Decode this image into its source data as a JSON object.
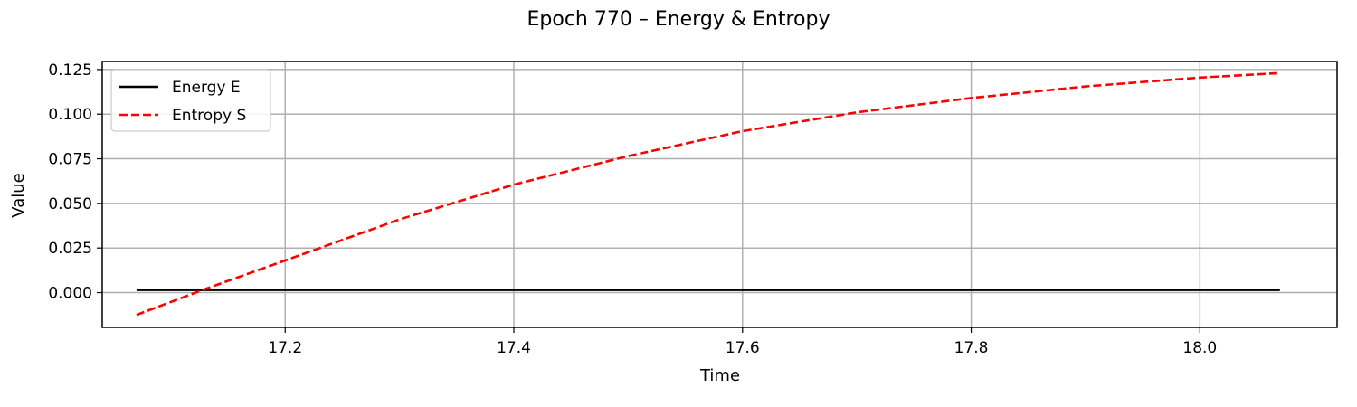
{
  "chart_data": {
    "type": "line",
    "title": "Epoch 770 – Energy & Entropy",
    "xlabel": "Time",
    "ylabel": "Value",
    "xlim": [
      17.04,
      18.12
    ],
    "ylim": [
      -0.0195,
      0.1295
    ],
    "xticks": [
      17.2,
      17.4,
      17.6,
      17.8,
      18.0
    ],
    "xtick_labels": [
      "17.2",
      "17.4",
      "17.6",
      "17.8",
      "18.0"
    ],
    "yticks": [
      0.0,
      0.025,
      0.05,
      0.075,
      0.1,
      0.125
    ],
    "ytick_labels": [
      "0.000",
      "0.025",
      "0.050",
      "0.075",
      "0.100",
      "0.125"
    ],
    "grid": true,
    "legend_position": "top-left",
    "series": [
      {
        "name": "Energy E",
        "color": "#000000",
        "style": "solid",
        "x": [
          17.07,
          17.3,
          17.5,
          17.7,
          17.9,
          18.07
        ],
        "y": [
          0.0015,
          0.0015,
          0.0015,
          0.0015,
          0.0015,
          0.0015
        ]
      },
      {
        "name": "Entropy S",
        "color": "#ff0000",
        "style": "dashed",
        "x": [
          17.07,
          17.13,
          17.2,
          17.3,
          17.4,
          17.5,
          17.6,
          17.7,
          17.8,
          17.9,
          18.0,
          18.07
        ],
        "y": [
          -0.0125,
          0.002,
          0.018,
          0.041,
          0.0605,
          0.0765,
          0.0905,
          0.101,
          0.109,
          0.1155,
          0.1205,
          0.123
        ]
      }
    ]
  }
}
